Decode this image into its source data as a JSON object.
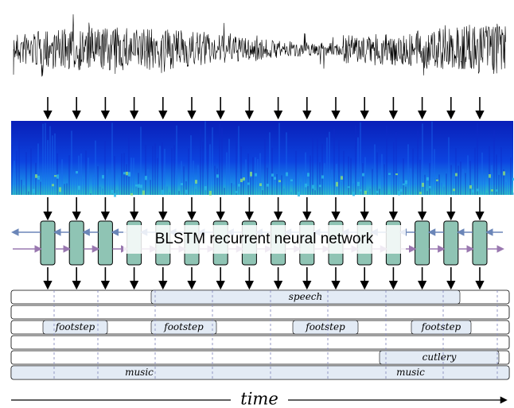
{
  "network_label": "BLSTM recurrent neural network",
  "events": [
    "speech",
    "footstep",
    "footstep",
    "footstep",
    "footstep",
    "cutlery",
    "music",
    "music"
  ],
  "axis_label": "time"
}
